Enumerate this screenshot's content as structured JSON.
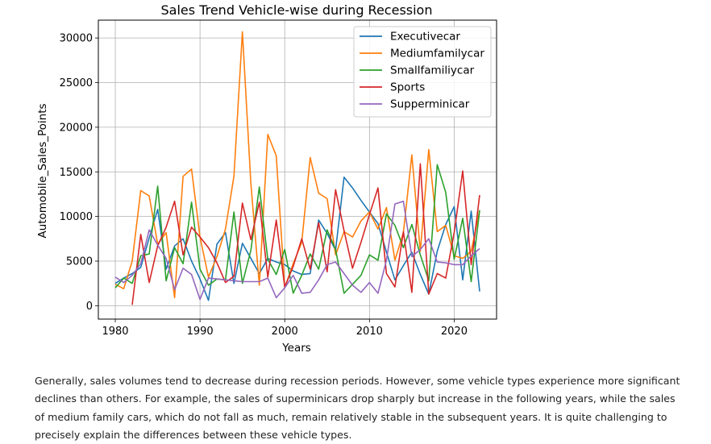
{
  "chart_data": {
    "type": "line",
    "title": "Sales Trend Vehicle-wise during Recession",
    "xlabel": "Years",
    "ylabel": "Automobile_Sales_Points",
    "xlim": [
      1978,
      2025
    ],
    "ylim": [
      -1500,
      32000
    ],
    "xticks": [
      1980,
      1990,
      2000,
      2010,
      2020
    ],
    "yticks": [
      0,
      5000,
      10000,
      15000,
      20000,
      25000,
      30000
    ],
    "grid": true,
    "legend_position": "top-right",
    "series": [
      {
        "name": "Executivecar",
        "color": "#1f77b4",
        "x": [
          1980,
          1981,
          1982,
          1983,
          1984,
          1985,
          1986,
          1987,
          1988,
          1989,
          1990,
          1991,
          1992,
          1993,
          1994,
          1995,
          1996,
          1997,
          1998,
          1999,
          2000,
          2001,
          2002,
          2003,
          2004,
          2005,
          2006,
          2007,
          2008,
          2009,
          2010,
          2011,
          2012,
          2013,
          2014,
          2015,
          2016,
          2017,
          2018,
          2019,
          2020,
          2021,
          2022,
          2023
        ],
        "y": [
          2500,
          3100,
          3600,
          4300,
          7600,
          10800,
          4100,
          6700,
          7500,
          5000,
          3000,
          600,
          6900,
          8200,
          2500,
          7000,
          5300,
          3600,
          5300,
          4900,
          4600,
          3900,
          3500,
          3600,
          9600,
          8100,
          6200,
          14400,
          13200,
          11800,
          10500,
          9200,
          6000,
          2900,
          4500,
          6000,
          3500,
          1300,
          6100,
          9100,
          11100,
          2900,
          10600,
          1600
        ]
      },
      {
        "name": "Mediumfamilycar",
        "color": "#ff7f0e",
        "x": [
          1980,
          1981,
          1982,
          1983,
          1984,
          1985,
          1986,
          1987,
          1988,
          1989,
          1990,
          1991,
          1992,
          1993,
          1994,
          1995,
          1996,
          1997,
          1998,
          1999,
          2000,
          2001,
          2002,
          2003,
          2004,
          2005,
          2006,
          2007,
          2008,
          2009,
          2010,
          2011,
          2012,
          2013,
          2014,
          2015,
          2016,
          2017,
          2018,
          2019,
          2020,
          2021,
          2022,
          2023
        ],
        "y": [
          2400,
          1900,
          5000,
          12900,
          12300,
          6900,
          8200,
          900,
          14500,
          15300,
          7700,
          3200,
          5500,
          8600,
          14500,
          30700,
          13700,
          2300,
          19200,
          16800,
          2000,
          4700,
          7100,
          16600,
          12600,
          12000,
          5700,
          8300,
          7700,
          9500,
          10500,
          8600,
          11000,
          5100,
          8200,
          16900,
          6100,
          17500,
          8300,
          9000,
          5600,
          5300,
          6100,
          10700
        ]
      },
      {
        "name": "Smallfamiliycar",
        "color": "#2ca02c",
        "x": [
          1980,
          1981,
          1982,
          1983,
          1984,
          1985,
          1986,
          1987,
          1988,
          1989,
          1990,
          1991,
          1992,
          1993,
          1994,
          1995,
          1996,
          1997,
          1998,
          1999,
          2000,
          2001,
          2002,
          2003,
          2004,
          2005,
          2006,
          2007,
          2008,
          2009,
          2010,
          2011,
          2012,
          2013,
          2014,
          2015,
          2016,
          2017,
          2018,
          2019,
          2020,
          2021,
          2022,
          2023
        ],
        "y": [
          2000,
          3100,
          2500,
          5600,
          5800,
          13400,
          2800,
          6500,
          4700,
          11600,
          4100,
          2300,
          3000,
          2900,
          10500,
          2500,
          6200,
          13300,
          5200,
          3500,
          6300,
          1400,
          3400,
          5800,
          4100,
          8500,
          6300,
          1400,
          2400,
          3400,
          5700,
          5100,
          10300,
          9000,
          6500,
          9100,
          5700,
          2800,
          15800,
          12700,
          5200,
          9800,
          2700,
          10700
        ]
      },
      {
        "name": "Sports",
        "color": "#d62728",
        "x": [
          1982,
          1983,
          1984,
          1985,
          1986,
          1987,
          1988,
          1989,
          1990,
          1991,
          1992,
          1993,
          1994,
          1995,
          1996,
          1997,
          1998,
          1999,
          2000,
          2001,
          2002,
          2003,
          2004,
          2005,
          2006,
          2007,
          2008,
          2009,
          2010,
          2011,
          2012,
          2013,
          2014,
          2015,
          2016,
          2017,
          2018,
          2019,
          2020,
          2021,
          2022,
          2023
        ],
        "y": [
          100,
          8000,
          2600,
          6700,
          8800,
          11700,
          5700,
          8800,
          7700,
          6500,
          4800,
          2600,
          3300,
          11500,
          7400,
          11600,
          3200,
          9600,
          2100,
          4400,
          7500,
          4100,
          9300,
          3800,
          13000,
          8400,
          4200,
          7100,
          10200,
          13200,
          3600,
          2100,
          8300,
          1500,
          15900,
          1300,
          3600,
          3100,
          8200,
          15100,
          4600,
          12400
        ]
      },
      {
        "name": "Supperminicar",
        "color": "#9467bd",
        "x": [
          1980,
          1981,
          1982,
          1983,
          1984,
          1985,
          1986,
          1987,
          1988,
          1989,
          1990,
          1991,
          1992,
          1993,
          1994,
          1995,
          1996,
          1997,
          1998,
          1999,
          2000,
          2001,
          2002,
          2003,
          2004,
          2005,
          2006,
          2007,
          2008,
          2009,
          2010,
          2011,
          2012,
          2013,
          2014,
          2015,
          2016,
          2017,
          2018,
          2019,
          2020,
          2021,
          2022,
          2023
        ],
        "y": [
          3200,
          2600,
          3400,
          4700,
          8500,
          6800,
          5300,
          1800,
          4200,
          3500,
          700,
          3100,
          3000,
          2900,
          2800,
          2700,
          2700,
          2700,
          3100,
          900,
          2000,
          3400,
          1400,
          1500,
          2900,
          4600,
          4900,
          3600,
          2300,
          1500,
          2600,
          1400,
          5100,
          11400,
          11700,
          5500,
          6300,
          7500,
          4900,
          4800,
          4600,
          4600,
          5600,
          6400
        ]
      }
    ]
  },
  "caption": "Generally, sales volumes tend to decrease during recession periods. However, some vehicle types experience more significant declines than others. For example, the sales of superminicars drop sharply but increase in the following years, while the sales of medium family cars, which do not fall as much, remain relatively stable in the subsequent years. It is quite challenging to precisely explain the differences between these vehicle types."
}
